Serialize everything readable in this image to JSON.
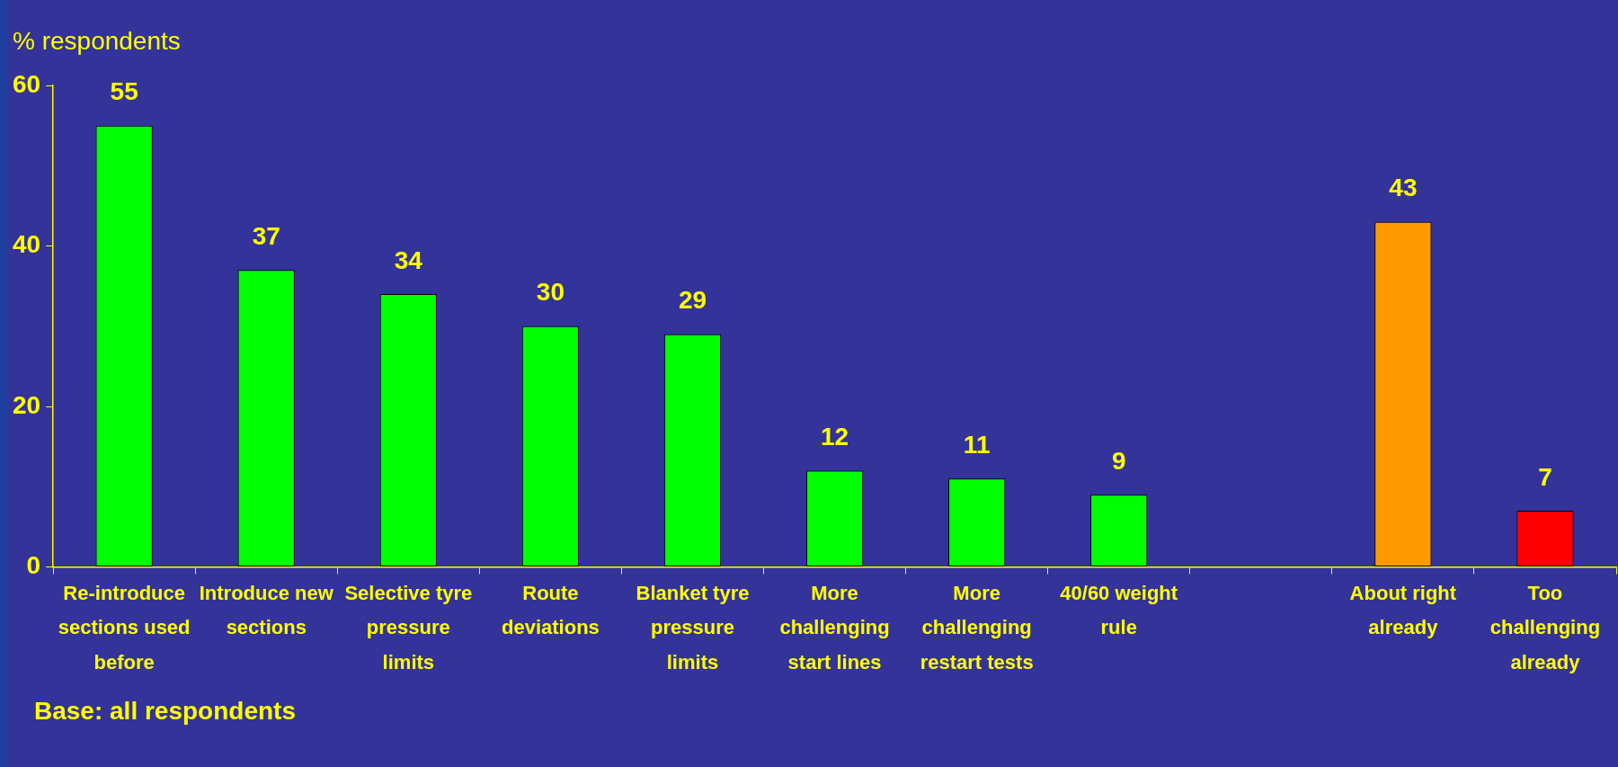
{
  "chart_data": {
    "type": "bar",
    "ylabel": "% respondents",
    "categories": [
      "Re-introduce sections used before",
      "Introduce new sections",
      "Selective tyre pressure limits",
      "Route deviations",
      "Blanket tyre pressure limits",
      "More challenging start lines",
      "More challenging restart tests",
      "40/60 weight rule",
      null,
      "About right already",
      "Too challenging already"
    ],
    "values": [
      55,
      37,
      34,
      30,
      29,
      12,
      11,
      9,
      null,
      43,
      7
    ],
    "colors": [
      "#00ff00",
      "#00ff00",
      "#00ff00",
      "#00ff00",
      "#00ff00",
      "#00ff00",
      "#00ff00",
      "#00ff00",
      null,
      "#ff9900",
      "#ff0000"
    ],
    "ylim": [
      0,
      60
    ],
    "yticks": [
      0,
      20,
      40,
      60
    ],
    "grid": false,
    "legend": false,
    "data_labels": true,
    "annotations": [
      "Base: all respondents"
    ]
  }
}
